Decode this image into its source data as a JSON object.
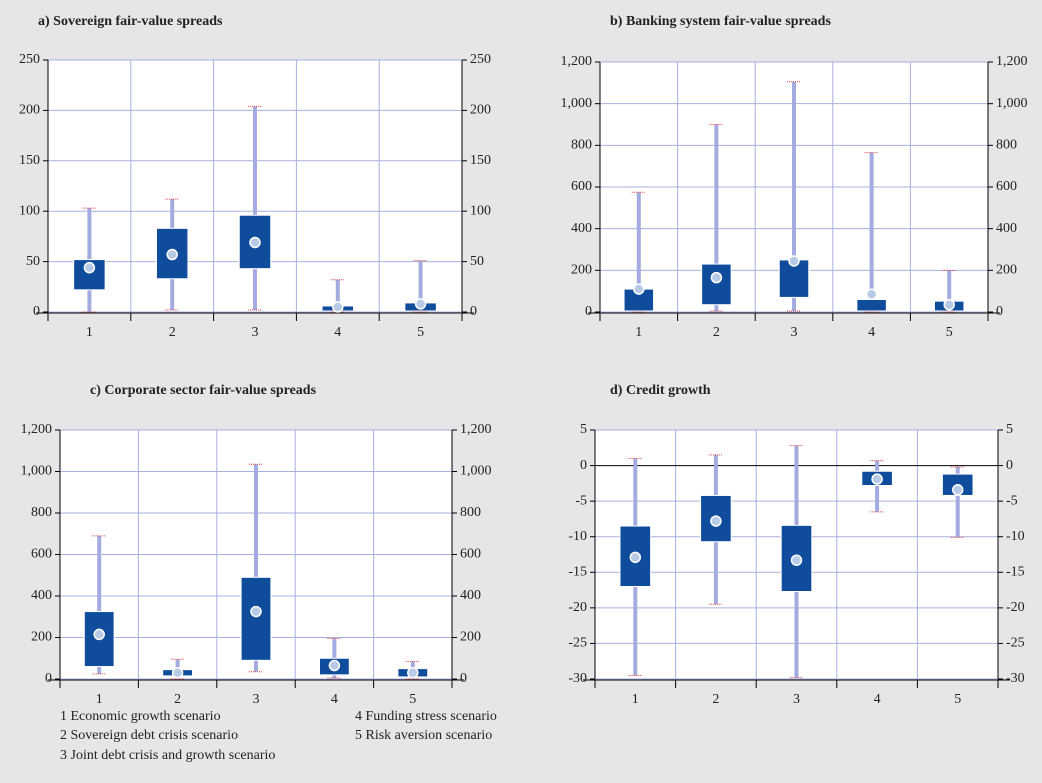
{
  "chart_data": [
    {
      "type": "box",
      "title": "a) Sovereign fair-value spreads",
      "categories": [
        "1",
        "2",
        "3",
        "4",
        "5"
      ],
      "min": [
        0,
        2,
        2,
        0,
        0
      ],
      "q1": [
        22,
        33,
        43,
        1,
        1
      ],
      "median": [
        44,
        57,
        69,
        5,
        8
      ],
      "q3": [
        52,
        83,
        96,
        6,
        9
      ],
      "max": [
        103,
        112,
        204,
        32,
        51
      ],
      "ylim": [
        0,
        250
      ],
      "yticks": [
        0,
        50,
        100,
        150,
        200,
        250
      ],
      "grid": true,
      "box_color": "#0f4c9c",
      "whisker_color": "#a3abe0"
    },
    {
      "type": "box",
      "title": "b) Banking system fair-value spreads",
      "categories": [
        "1",
        "2",
        "3",
        "4",
        "5"
      ],
      "min": [
        0,
        5,
        5,
        0,
        0
      ],
      "q1": [
        5,
        35,
        70,
        5,
        5
      ],
      "median": [
        110,
        165,
        245,
        85,
        35
      ],
      "q3": [
        110,
        230,
        250,
        60,
        52
      ],
      "max": [
        575,
        900,
        1105,
        765,
        200
      ],
      "ylim": [
        0,
        1200
      ],
      "yticks": [
        0,
        200,
        400,
        600,
        800,
        {
          "value": 1000,
          "label": "1,000"
        },
        {
          "value": 1200,
          "label": "1,200"
        }
      ],
      "grid": true,
      "box_color": "#0f4c9c",
      "whisker_color": "#a3abe0"
    },
    {
      "type": "box",
      "title": "c) Corporate sector fair-value spreads",
      "categories": [
        "1",
        "2",
        "3",
        "4",
        "5"
      ],
      "min": [
        25,
        0,
        35,
        5,
        0
      ],
      "q1": [
        60,
        15,
        90,
        20,
        10
      ],
      "median": [
        215,
        30,
        325,
        65,
        30
      ],
      "q3": [
        325,
        45,
        490,
        100,
        50
      ],
      "max": [
        690,
        95,
        1035,
        195,
        85
      ],
      "ylim": [
        0,
        1200
      ],
      "yticks": [
        0,
        200,
        400,
        600,
        800,
        {
          "value": 1000,
          "label": "1,000"
        },
        {
          "value": 1200,
          "label": "1,200"
        }
      ],
      "grid": true,
      "box_color": "#0f4c9c",
      "whisker_color": "#a3abe0"
    },
    {
      "type": "box",
      "title": "d) Credit growth",
      "categories": [
        "1",
        "2",
        "3",
        "4",
        "5"
      ],
      "min": [
        -29.5,
        -19.5,
        -29.8,
        -6.5,
        -10.1
      ],
      "q1": [
        -17,
        -10.7,
        -17.7,
        -2.8,
        -4.2
      ],
      "median": [
        -12.9,
        -7.8,
        -13.3,
        -1.9,
        -3.4
      ],
      "q3": [
        -8.5,
        -4.2,
        -8.4,
        -0.8,
        -1.2
      ],
      "max": [
        1,
        1.5,
        2.8,
        0.7,
        -0.2
      ],
      "ylim": [
        -30,
        5
      ],
      "yticks": [
        -30,
        -25,
        -20,
        -15,
        -10,
        -5,
        0,
        5
      ],
      "grid": true,
      "box_color": "#0f4c9c",
      "whisker_color": "#a3abe0"
    }
  ],
  "legend": [
    "1 Economic growth scenario",
    "2 Sovereign debt crisis scenario",
    "3 Joint debt crisis and growth scenario",
    "4 Funding stress scenario",
    "5 Risk aversion scenario"
  ]
}
